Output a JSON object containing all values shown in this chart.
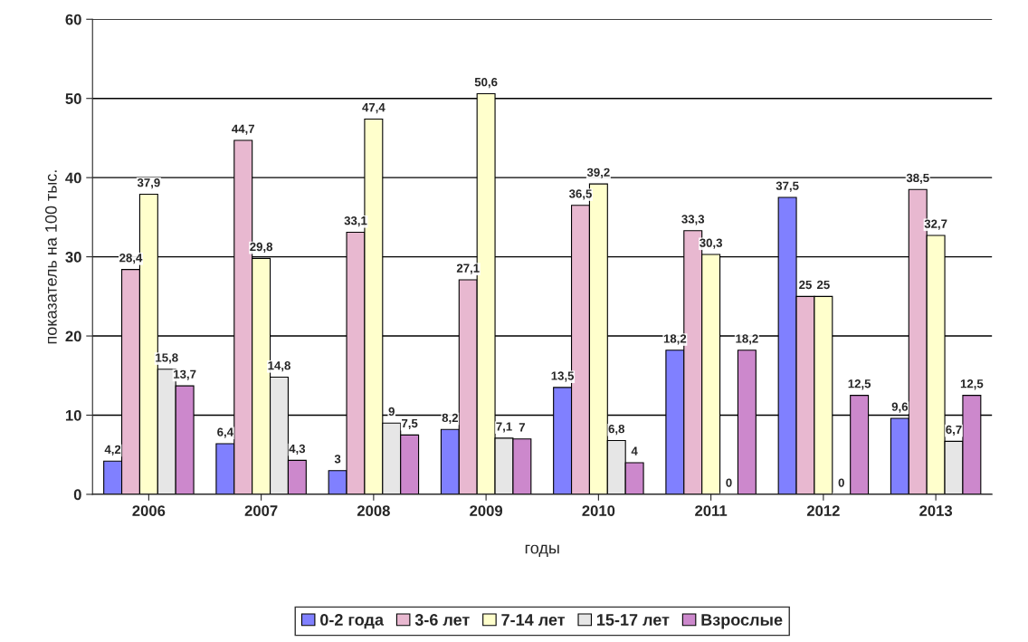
{
  "chart_data": {
    "type": "bar",
    "xlabel": "годы",
    "ylabel": "показатель на 100 тыс.",
    "categories": [
      "2006",
      "2007",
      "2008",
      "2009",
      "2010",
      "2011",
      "2012",
      "2013"
    ],
    "series": [
      {
        "name": "0-2 года",
        "color": "#8080ff",
        "values": [
          4.2,
          6.4,
          3,
          8.2,
          13.5,
          18.2,
          37.5,
          9.6
        ],
        "value_labels": [
          "4,2",
          "6,4",
          "3",
          "8,2",
          "13,5",
          "18,2",
          "37,5",
          "9,6"
        ]
      },
      {
        "name": "3-6 лет",
        "color": "#e8b8d0",
        "values": [
          28.4,
          44.7,
          33.1,
          27.1,
          36.5,
          33.3,
          25,
          38.5
        ],
        "value_labels": [
          "28,4",
          "44,7",
          "33,1",
          "27,1",
          "36,5",
          "33,3",
          "25",
          "38,5"
        ]
      },
      {
        "name": "7-14 лет",
        "color": "#ffffcc",
        "values": [
          37.9,
          29.8,
          47.4,
          50.6,
          39.2,
          30.3,
          25,
          32.7
        ],
        "value_labels": [
          "37,9",
          "29,8",
          "47,4",
          "50,6",
          "39,2",
          "30,3",
          "25",
          "32,7"
        ]
      },
      {
        "name": "15-17 лет",
        "color": "#e6e6e6",
        "values": [
          15.8,
          14.8,
          9,
          7.1,
          6.8,
          0,
          0,
          6.7
        ],
        "value_labels": [
          "15,8",
          "14,8",
          "9",
          "7,1",
          "6,8",
          "0",
          "0",
          "6,7"
        ]
      },
      {
        "name": "Взрослые",
        "color": "#cc88cc",
        "values": [
          13.7,
          4.3,
          7.5,
          7,
          4,
          18.2,
          12.5,
          12.5
        ],
        "value_labels": [
          "13,7",
          "4,3",
          "7,5",
          "7",
          "4",
          "18,2",
          "12,5",
          "12,5"
        ]
      }
    ],
    "ylim": [
      0,
      60
    ],
    "yticks": [
      0,
      10,
      20,
      30,
      40,
      50,
      60
    ],
    "grid": "y",
    "legend": "bottom"
  }
}
